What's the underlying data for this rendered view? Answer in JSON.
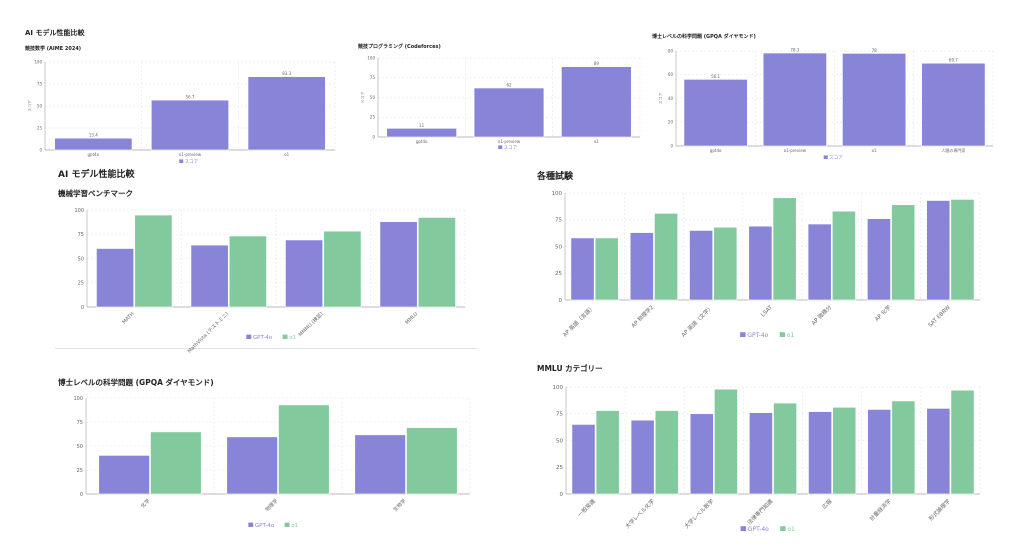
{
  "top_section": {
    "title": "AI モデル性能比較"
  },
  "main_section": {
    "title": "AI モデル性能比較"
  },
  "colors": {
    "gpt4o": "#8884d8",
    "o1": "#82ca9d",
    "grid": "#e6e6e6",
    "axis": "#999999"
  },
  "chart_data": [
    {
      "id": "aime",
      "type": "bar",
      "title": "競技数学 (AIME 2024)",
      "ylabel": "スコア",
      "categories": [
        "gpt4o",
        "o1-preview",
        "o1"
      ],
      "series": [
        {
          "name": "スコア",
          "values": [
            13.4,
            56.7,
            83.3
          ],
          "color": "#8884d8"
        }
      ],
      "ylim": [
        0,
        100
      ],
      "yticks": [
        0,
        25,
        50,
        75,
        100
      ],
      "data_labels": true,
      "grid": true,
      "legend": "bottom"
    },
    {
      "id": "codeforces",
      "type": "bar",
      "title": "競技プログラミング (Codeforces)",
      "ylabel": "スコア",
      "categories": [
        "gpt4o",
        "o1-preview",
        "o1"
      ],
      "series": [
        {
          "name": "スコア",
          "values": [
            11,
            62,
            89
          ],
          "color": "#8884d8"
        }
      ],
      "ylim": [
        0,
        100
      ],
      "yticks": [
        0,
        25,
        50,
        75,
        100
      ],
      "data_labels": true,
      "grid": true,
      "legend": "bottom"
    },
    {
      "id": "gpqa_top",
      "type": "bar",
      "title": "博士レベルの科学問題 (GPQA ダイヤモンド)",
      "ylabel": "スコア",
      "categories": [
        "gpt4o",
        "o1-preview",
        "o1",
        "人間の専門家"
      ],
      "series": [
        {
          "name": "スコア",
          "values": [
            56.1,
            78.3,
            78,
            69.7
          ],
          "color": "#8884d8"
        }
      ],
      "ylim": [
        0,
        80
      ],
      "yticks": [
        0,
        20,
        40,
        60,
        80
      ],
      "data_labels": true,
      "grid": true,
      "legend": "bottom"
    },
    {
      "id": "ml",
      "type": "bar",
      "title": "機械学習ベンチマーク",
      "categories": [
        "MATH",
        "MathVista (テストミニ)",
        "MMMU (検証)",
        "MMLU"
      ],
      "series": [
        {
          "name": "GPT-4o",
          "values": [
            60.3,
            63.8,
            69.1,
            88.0
          ],
          "color": "#8884d8"
        },
        {
          "name": "o1",
          "values": [
            94.8,
            73.2,
            78.2,
            92.3
          ],
          "color": "#82ca9d"
        }
      ],
      "ylim": [
        0,
        100
      ],
      "yticks": [
        0,
        25,
        50,
        75,
        100
      ],
      "grid": true,
      "legend": "bottom"
    },
    {
      "id": "exams",
      "type": "bar",
      "title": "各種試験",
      "categories": [
        "AP 英語（言語）",
        "AP 物理学2",
        "AP 英語（文学）",
        "LSAT",
        "AP 微積分",
        "AP 化学",
        "SAT EBRW"
      ],
      "series": [
        {
          "name": "GPT-4o",
          "values": [
            58,
            63,
            65,
            69,
            71,
            76,
            93
          ],
          "color": "#8884d8"
        },
        {
          "name": "o1",
          "values": [
            58,
            81,
            68,
            95.6,
            83,
            89,
            94
          ],
          "color": "#82ca9d"
        }
      ],
      "ylim": [
        0,
        100
      ],
      "yticks": [
        0,
        25,
        50,
        75,
        100
      ],
      "grid": true,
      "legend": "bottom"
    },
    {
      "id": "gpqa",
      "type": "bar",
      "title": "博士レベルの科学問題 (GPQA ダイヤモンド)",
      "categories": [
        "化学",
        "物理学",
        "生物学"
      ],
      "series": [
        {
          "name": "GPT-4o",
          "values": [
            40.2,
            59.5,
            61.6
          ],
          "color": "#8884d8"
        },
        {
          "name": "o1",
          "values": [
            64.7,
            92.8,
            69.2
          ],
          "color": "#82ca9d"
        }
      ],
      "ylim": [
        0,
        100
      ],
      "yticks": [
        0,
        25,
        50,
        75,
        100
      ],
      "grid": true,
      "legend": "bottom"
    },
    {
      "id": "mmlu",
      "type": "bar",
      "title": "MMLU カテゴリー",
      "categories": [
        "一般常識",
        "大学レベル化学",
        "大学レベル数学",
        "法律専門知識",
        "広報",
        "計量経済学",
        "形式論理学"
      ],
      "series": [
        {
          "name": "GPT-4o",
          "values": [
            65,
            69,
            75,
            76,
            77,
            79,
            80
          ],
          "color": "#8884d8"
        },
        {
          "name": "o1",
          "values": [
            78,
            78,
            98,
            85,
            81,
            87,
            97
          ],
          "color": "#82ca9d"
        }
      ],
      "ylim": [
        0,
        100
      ],
      "yticks": [
        0,
        25,
        50,
        75,
        100
      ],
      "grid": true,
      "legend": "bottom"
    }
  ]
}
